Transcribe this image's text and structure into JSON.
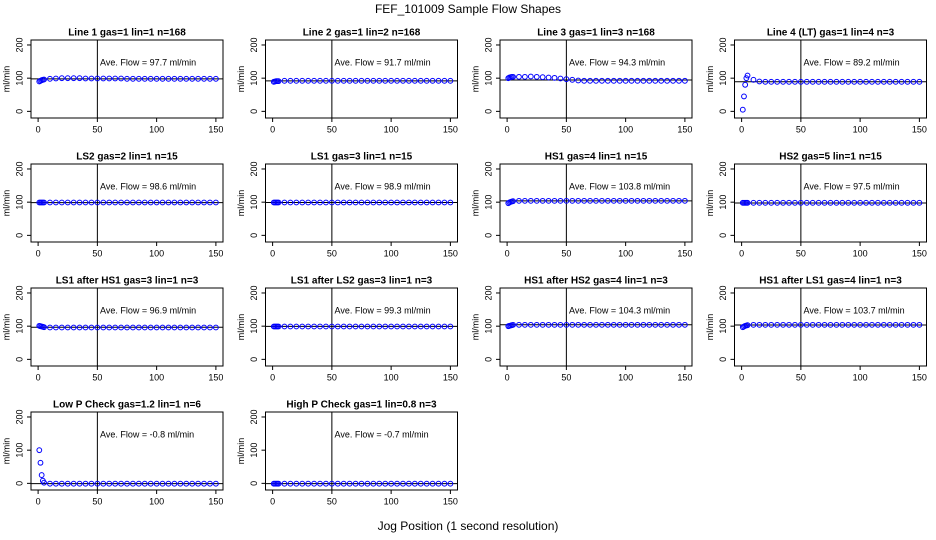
{
  "title": "FEF_101009  Sample Flow Shapes",
  "xlabel": "Jog Position (1 second resolution)",
  "chart_data": [
    {
      "type": "scatter",
      "title": "Line 1 gas=1 lin=1 n=168",
      "ylabel": "ml/min",
      "annotation": "Ave. Flow =  97.7  ml/min",
      "hline": 97.7,
      "vline": 50,
      "color": "#0000ff",
      "xlim": [
        -6,
        156
      ],
      "ylim": [
        -20,
        215
      ],
      "xticks": [
        0,
        50,
        100,
        150
      ],
      "yticks": [
        0,
        100,
        200
      ],
      "x": [
        1,
        2,
        3,
        4,
        5,
        10,
        15,
        20,
        25,
        30,
        35,
        40,
        45,
        50,
        55,
        60,
        65,
        70,
        75,
        80,
        85,
        90,
        95,
        100,
        105,
        110,
        115,
        120,
        125,
        130,
        135,
        140,
        145,
        150
      ],
      "values": [
        90,
        92,
        94,
        95,
        96,
        98,
        99,
        100,
        100,
        100,
        100,
        99,
        99,
        99,
        99,
        99,
        99,
        99,
        98,
        98,
        98,
        98,
        98,
        98,
        98,
        98,
        98,
        98,
        98,
        98,
        98,
        98,
        98,
        98
      ]
    },
    {
      "type": "scatter",
      "title": "Line 2 gas=1 lin=2 n=168",
      "ylabel": "ml/min",
      "annotation": "Ave. Flow =  91.7  ml/min",
      "hline": 91.7,
      "vline": 50,
      "color": "#0000ff",
      "xlim": [
        -6,
        156
      ],
      "ylim": [
        -20,
        215
      ],
      "xticks": [
        0,
        50,
        100,
        150
      ],
      "yticks": [
        0,
        100,
        200
      ],
      "x": [
        1,
        2,
        3,
        4,
        5,
        10,
        15,
        20,
        25,
        30,
        35,
        40,
        45,
        50,
        55,
        60,
        65,
        70,
        75,
        80,
        85,
        90,
        95,
        100,
        105,
        110,
        115,
        120,
        125,
        130,
        135,
        140,
        145,
        150
      ],
      "values": [
        89,
        90,
        91,
        91,
        91,
        92,
        92,
        92,
        92,
        92,
        92,
        92,
        92,
        92,
        92,
        92,
        92,
        92,
        92,
        92,
        92,
        92,
        92,
        92,
        92,
        92,
        92,
        92,
        92,
        92,
        92,
        92,
        92,
        92
      ]
    },
    {
      "type": "scatter",
      "title": "Line 3 gas=1 lin=3 n=168",
      "ylabel": "ml/min",
      "annotation": "Ave. Flow =  94.3  ml/min",
      "hline": 94.3,
      "vline": 50,
      "color": "#0000ff",
      "xlim": [
        -6,
        156
      ],
      "ylim": [
        -20,
        215
      ],
      "xticks": [
        0,
        50,
        100,
        150
      ],
      "yticks": [
        0,
        100,
        200
      ],
      "x": [
        1,
        2,
        3,
        4,
        5,
        10,
        15,
        20,
        25,
        30,
        35,
        40,
        45,
        50,
        55,
        60,
        65,
        70,
        75,
        80,
        85,
        90,
        95,
        100,
        105,
        110,
        115,
        120,
        125,
        130,
        135,
        140,
        145,
        150
      ],
      "values": [
        100,
        102,
        103,
        104,
        104,
        104,
        104,
        105,
        104,
        103,
        102,
        101,
        99,
        97,
        95,
        93,
        92,
        92,
        92,
        92,
        92,
        92,
        92,
        92,
        92,
        92,
        92,
        92,
        92,
        92,
        92,
        92,
        92,
        92
      ]
    },
    {
      "type": "scatter",
      "title": "Line 4 (LT) gas=1 lin=4 n=3",
      "ylabel": "ml/min",
      "annotation": "Ave. Flow =  89.2  ml/min",
      "hline": 89.2,
      "vline": 50,
      "color": "#0000ff",
      "xlim": [
        -6,
        156
      ],
      "ylim": [
        -20,
        215
      ],
      "xticks": [
        0,
        50,
        100,
        150
      ],
      "yticks": [
        0,
        100,
        200
      ],
      "x": [
        1,
        2,
        3,
        4,
        5,
        10,
        15,
        20,
        25,
        30,
        35,
        40,
        45,
        50,
        55,
        60,
        65,
        70,
        75,
        80,
        85,
        90,
        95,
        100,
        105,
        110,
        115,
        120,
        125,
        130,
        135,
        140,
        145,
        150
      ],
      "values": [
        5,
        45,
        80,
        100,
        108,
        95,
        90,
        89,
        89,
        89,
        89,
        89,
        89,
        89,
        89,
        89,
        89,
        89,
        89,
        89,
        89,
        89,
        89,
        89,
        89,
        89,
        89,
        89,
        89,
        89,
        89,
        89,
        89,
        89
      ]
    },
    {
      "type": "scatter",
      "title": "LS2 gas=2 lin=1 n=15",
      "ylabel": "ml/min",
      "annotation": "Ave. Flow =  98.6  ml/min",
      "hline": 98.6,
      "vline": 50,
      "color": "#0000ff",
      "xlim": [
        -6,
        156
      ],
      "ylim": [
        -20,
        215
      ],
      "xticks": [
        0,
        50,
        100,
        150
      ],
      "yticks": [
        0,
        100,
        200
      ],
      "x": [
        1,
        2,
        3,
        4,
        5,
        10,
        15,
        20,
        25,
        30,
        35,
        40,
        45,
        50,
        55,
        60,
        65,
        70,
        75,
        80,
        85,
        90,
        95,
        100,
        105,
        110,
        115,
        120,
        125,
        130,
        135,
        140,
        145,
        150
      ],
      "values": [
        99,
        99,
        99,
        99,
        99,
        99,
        99,
        99,
        99,
        99,
        99,
        99,
        99,
        99,
        99,
        99,
        99,
        99,
        99,
        99,
        99,
        99,
        99,
        99,
        99,
        99,
        99,
        99,
        99,
        99,
        99,
        99,
        99,
        99
      ]
    },
    {
      "type": "scatter",
      "title": "LS1 gas=3 lin=1 n=15",
      "ylabel": "ml/min",
      "annotation": "Ave. Flow =  98.9  ml/min",
      "hline": 98.9,
      "vline": 50,
      "color": "#0000ff",
      "xlim": [
        -6,
        156
      ],
      "ylim": [
        -20,
        215
      ],
      "xticks": [
        0,
        50,
        100,
        150
      ],
      "yticks": [
        0,
        100,
        200
      ],
      "x": [
        1,
        2,
        3,
        4,
        5,
        10,
        15,
        20,
        25,
        30,
        35,
        40,
        45,
        50,
        55,
        60,
        65,
        70,
        75,
        80,
        85,
        90,
        95,
        100,
        105,
        110,
        115,
        120,
        125,
        130,
        135,
        140,
        145,
        150
      ],
      "values": [
        99,
        99,
        99,
        99,
        99,
        99,
        99,
        99,
        99,
        99,
        99,
        99,
        99,
        99,
        99,
        99,
        99,
        99,
        99,
        99,
        99,
        99,
        99,
        99,
        99,
        99,
        99,
        99,
        99,
        99,
        99,
        99,
        99,
        99
      ]
    },
    {
      "type": "scatter",
      "title": "HS1 gas=4 lin=1 n=15",
      "ylabel": "ml/min",
      "annotation": "Ave. Flow =  103.8  ml/min",
      "hline": 103.8,
      "vline": 50,
      "color": "#0000ff",
      "xlim": [
        -6,
        156
      ],
      "ylim": [
        -20,
        215
      ],
      "xticks": [
        0,
        50,
        100,
        150
      ],
      "yticks": [
        0,
        100,
        200
      ],
      "x": [
        1,
        2,
        3,
        4,
        5,
        10,
        15,
        20,
        25,
        30,
        35,
        40,
        45,
        50,
        55,
        60,
        65,
        70,
        75,
        80,
        85,
        90,
        95,
        100,
        105,
        110,
        115,
        120,
        125,
        130,
        135,
        140,
        145,
        150
      ],
      "values": [
        97,
        99,
        101,
        102,
        103,
        104,
        104,
        104,
        104,
        104,
        104,
        104,
        104,
        104,
        104,
        104,
        104,
        104,
        104,
        104,
        104,
        104,
        104,
        104,
        104,
        104,
        104,
        104,
        104,
        104,
        104,
        104,
        104,
        104
      ]
    },
    {
      "type": "scatter",
      "title": "HS2 gas=5 lin=1 n=15",
      "ylabel": "ml/min",
      "annotation": "Ave. Flow =  97.5  ml/min",
      "hline": 97.5,
      "vline": 50,
      "color": "#0000ff",
      "xlim": [
        -6,
        156
      ],
      "ylim": [
        -20,
        215
      ],
      "xticks": [
        0,
        50,
        100,
        150
      ],
      "yticks": [
        0,
        100,
        200
      ],
      "x": [
        1,
        2,
        3,
        4,
        5,
        10,
        15,
        20,
        25,
        30,
        35,
        40,
        45,
        50,
        55,
        60,
        65,
        70,
        75,
        80,
        85,
        90,
        95,
        100,
        105,
        110,
        115,
        120,
        125,
        130,
        135,
        140,
        145,
        150
      ],
      "values": [
        98,
        98,
        98,
        98,
        98,
        98,
        98,
        98,
        98,
        98,
        98,
        98,
        98,
        98,
        98,
        98,
        98,
        98,
        98,
        98,
        98,
        98,
        98,
        98,
        98,
        98,
        98,
        98,
        98,
        98,
        98,
        98,
        98,
        98
      ]
    },
    {
      "type": "scatter",
      "title": "LS1 after HS1 gas=3 lin=1 n=3",
      "ylabel": "ml/min",
      "annotation": "Ave. Flow =  96.9  ml/min",
      "hline": 96.9,
      "vline": 50,
      "color": "#0000ff",
      "xlim": [
        -6,
        156
      ],
      "ylim": [
        -20,
        215
      ],
      "xticks": [
        0,
        50,
        100,
        150
      ],
      "yticks": [
        0,
        100,
        200
      ],
      "x": [
        1,
        2,
        3,
        4,
        5,
        10,
        15,
        20,
        25,
        30,
        35,
        40,
        45,
        50,
        55,
        60,
        65,
        70,
        75,
        80,
        85,
        90,
        95,
        100,
        105,
        110,
        115,
        120,
        125,
        130,
        135,
        140,
        145,
        150
      ],
      "values": [
        101,
        100,
        99,
        98,
        97,
        96,
        96,
        96,
        96,
        96,
        96,
        96,
        96,
        96,
        96,
        96,
        96,
        96,
        96,
        96,
        96,
        96,
        96,
        96,
        96,
        96,
        96,
        96,
        96,
        96,
        96,
        96,
        96,
        96
      ]
    },
    {
      "type": "scatter",
      "title": "LS1 after LS2 gas=3 lin=1 n=3",
      "ylabel": "ml/min",
      "annotation": "Ave. Flow =  99.3  ml/min",
      "hline": 99.3,
      "vline": 50,
      "color": "#0000ff",
      "xlim": [
        -6,
        156
      ],
      "ylim": [
        -20,
        215
      ],
      "xticks": [
        0,
        50,
        100,
        150
      ],
      "yticks": [
        0,
        100,
        200
      ],
      "x": [
        1,
        2,
        3,
        4,
        5,
        10,
        15,
        20,
        25,
        30,
        35,
        40,
        45,
        50,
        55,
        60,
        65,
        70,
        75,
        80,
        85,
        90,
        95,
        100,
        105,
        110,
        115,
        120,
        125,
        130,
        135,
        140,
        145,
        150
      ],
      "values": [
        99,
        99,
        99,
        99,
        99,
        99,
        99,
        99,
        99,
        99,
        99,
        99,
        99,
        99,
        99,
        99,
        99,
        99,
        99,
        99,
        99,
        99,
        99,
        99,
        99,
        99,
        99,
        99,
        99,
        99,
        99,
        99,
        99,
        99
      ]
    },
    {
      "type": "scatter",
      "title": "HS1 after HS2 gas=4 lin=1 n=3",
      "ylabel": "ml/min",
      "annotation": "Ave. Flow =  104.3  ml/min",
      "hline": 104.3,
      "vline": 50,
      "color": "#0000ff",
      "xlim": [
        -6,
        156
      ],
      "ylim": [
        -20,
        215
      ],
      "xticks": [
        0,
        50,
        100,
        150
      ],
      "yticks": [
        0,
        100,
        200
      ],
      "x": [
        1,
        2,
        3,
        4,
        5,
        10,
        15,
        20,
        25,
        30,
        35,
        40,
        45,
        50,
        55,
        60,
        65,
        70,
        75,
        80,
        85,
        90,
        95,
        100,
        105,
        110,
        115,
        120,
        125,
        130,
        135,
        140,
        145,
        150
      ],
      "values": [
        100,
        101,
        102,
        103,
        104,
        104,
        104,
        104,
        104,
        104,
        104,
        104,
        104,
        104,
        104,
        104,
        104,
        104,
        104,
        104,
        104,
        104,
        104,
        104,
        104,
        104,
        104,
        104,
        104,
        104,
        104,
        104,
        104,
        104
      ]
    },
    {
      "type": "scatter",
      "title": "HS1 after LS1 gas=4 lin=1 n=3",
      "ylabel": "ml/min",
      "annotation": "Ave. Flow =  103.7  ml/min",
      "hline": 103.7,
      "vline": 50,
      "color": "#0000ff",
      "xlim": [
        -6,
        156
      ],
      "ylim": [
        -20,
        215
      ],
      "xticks": [
        0,
        50,
        100,
        150
      ],
      "yticks": [
        0,
        100,
        200
      ],
      "x": [
        1,
        2,
        3,
        4,
        5,
        10,
        15,
        20,
        25,
        30,
        35,
        40,
        45,
        50,
        55,
        60,
        65,
        70,
        75,
        80,
        85,
        90,
        95,
        100,
        105,
        110,
        115,
        120,
        125,
        130,
        135,
        140,
        145,
        150
      ],
      "values": [
        97,
        99,
        101,
        102,
        103,
        104,
        104,
        104,
        104,
        104,
        104,
        104,
        104,
        104,
        104,
        104,
        104,
        104,
        104,
        104,
        104,
        104,
        104,
        104,
        104,
        104,
        104,
        104,
        104,
        104,
        104,
        104,
        104,
        104
      ]
    },
    {
      "type": "scatter",
      "title": "Low P Check gas=1.2 lin=1 n=6",
      "ylabel": "ml/min",
      "annotation": "Ave. Flow =  -0.8  ml/min",
      "hline": -0.8,
      "vline": 50,
      "color": "#0000ff",
      "xlim": [
        -6,
        156
      ],
      "ylim": [
        -20,
        215
      ],
      "xticks": [
        0,
        50,
        100,
        150
      ],
      "yticks": [
        0,
        100,
        200
      ],
      "x": [
        1,
        2,
        3,
        4,
        5,
        10,
        15,
        20,
        25,
        30,
        35,
        40,
        45,
        50,
        55,
        60,
        65,
        70,
        75,
        80,
        85,
        90,
        95,
        100,
        105,
        110,
        115,
        120,
        125,
        130,
        135,
        140,
        145,
        150
      ],
      "values": [
        100,
        62,
        25,
        8,
        2,
        -1,
        -1,
        -1,
        -1,
        -1,
        -1,
        -1,
        -1,
        -1,
        -1,
        -1,
        -1,
        -1,
        -1,
        -1,
        -1,
        -1,
        -1,
        -1,
        -1,
        -1,
        -1,
        -1,
        -1,
        -1,
        -1,
        -1,
        -1,
        -1
      ]
    },
    {
      "type": "scatter",
      "title": "High P Check gas=1 lin=0.8 n=3",
      "ylabel": "ml/min",
      "annotation": "Ave. Flow =  -0.7  ml/min",
      "hline": -0.7,
      "vline": 50,
      "color": "#0000ff",
      "xlim": [
        -6,
        156
      ],
      "ylim": [
        -20,
        215
      ],
      "xticks": [
        0,
        50,
        100,
        150
      ],
      "yticks": [
        0,
        100,
        200
      ],
      "x": [
        1,
        2,
        3,
        4,
        5,
        10,
        15,
        20,
        25,
        30,
        35,
        40,
        45,
        50,
        55,
        60,
        65,
        70,
        75,
        80,
        85,
        90,
        95,
        100,
        105,
        110,
        115,
        120,
        125,
        130,
        135,
        140,
        145,
        150
      ],
      "values": [
        -1,
        -1,
        -1,
        -1,
        -1,
        -1,
        -1,
        -1,
        -1,
        -1,
        -1,
        -1,
        -1,
        -1,
        -1,
        -1,
        -1,
        -1,
        -1,
        -1,
        -1,
        -1,
        -1,
        -1,
        -1,
        -1,
        -1,
        -1,
        -1,
        -1,
        -1,
        -1,
        -1,
        -1
      ]
    }
  ]
}
